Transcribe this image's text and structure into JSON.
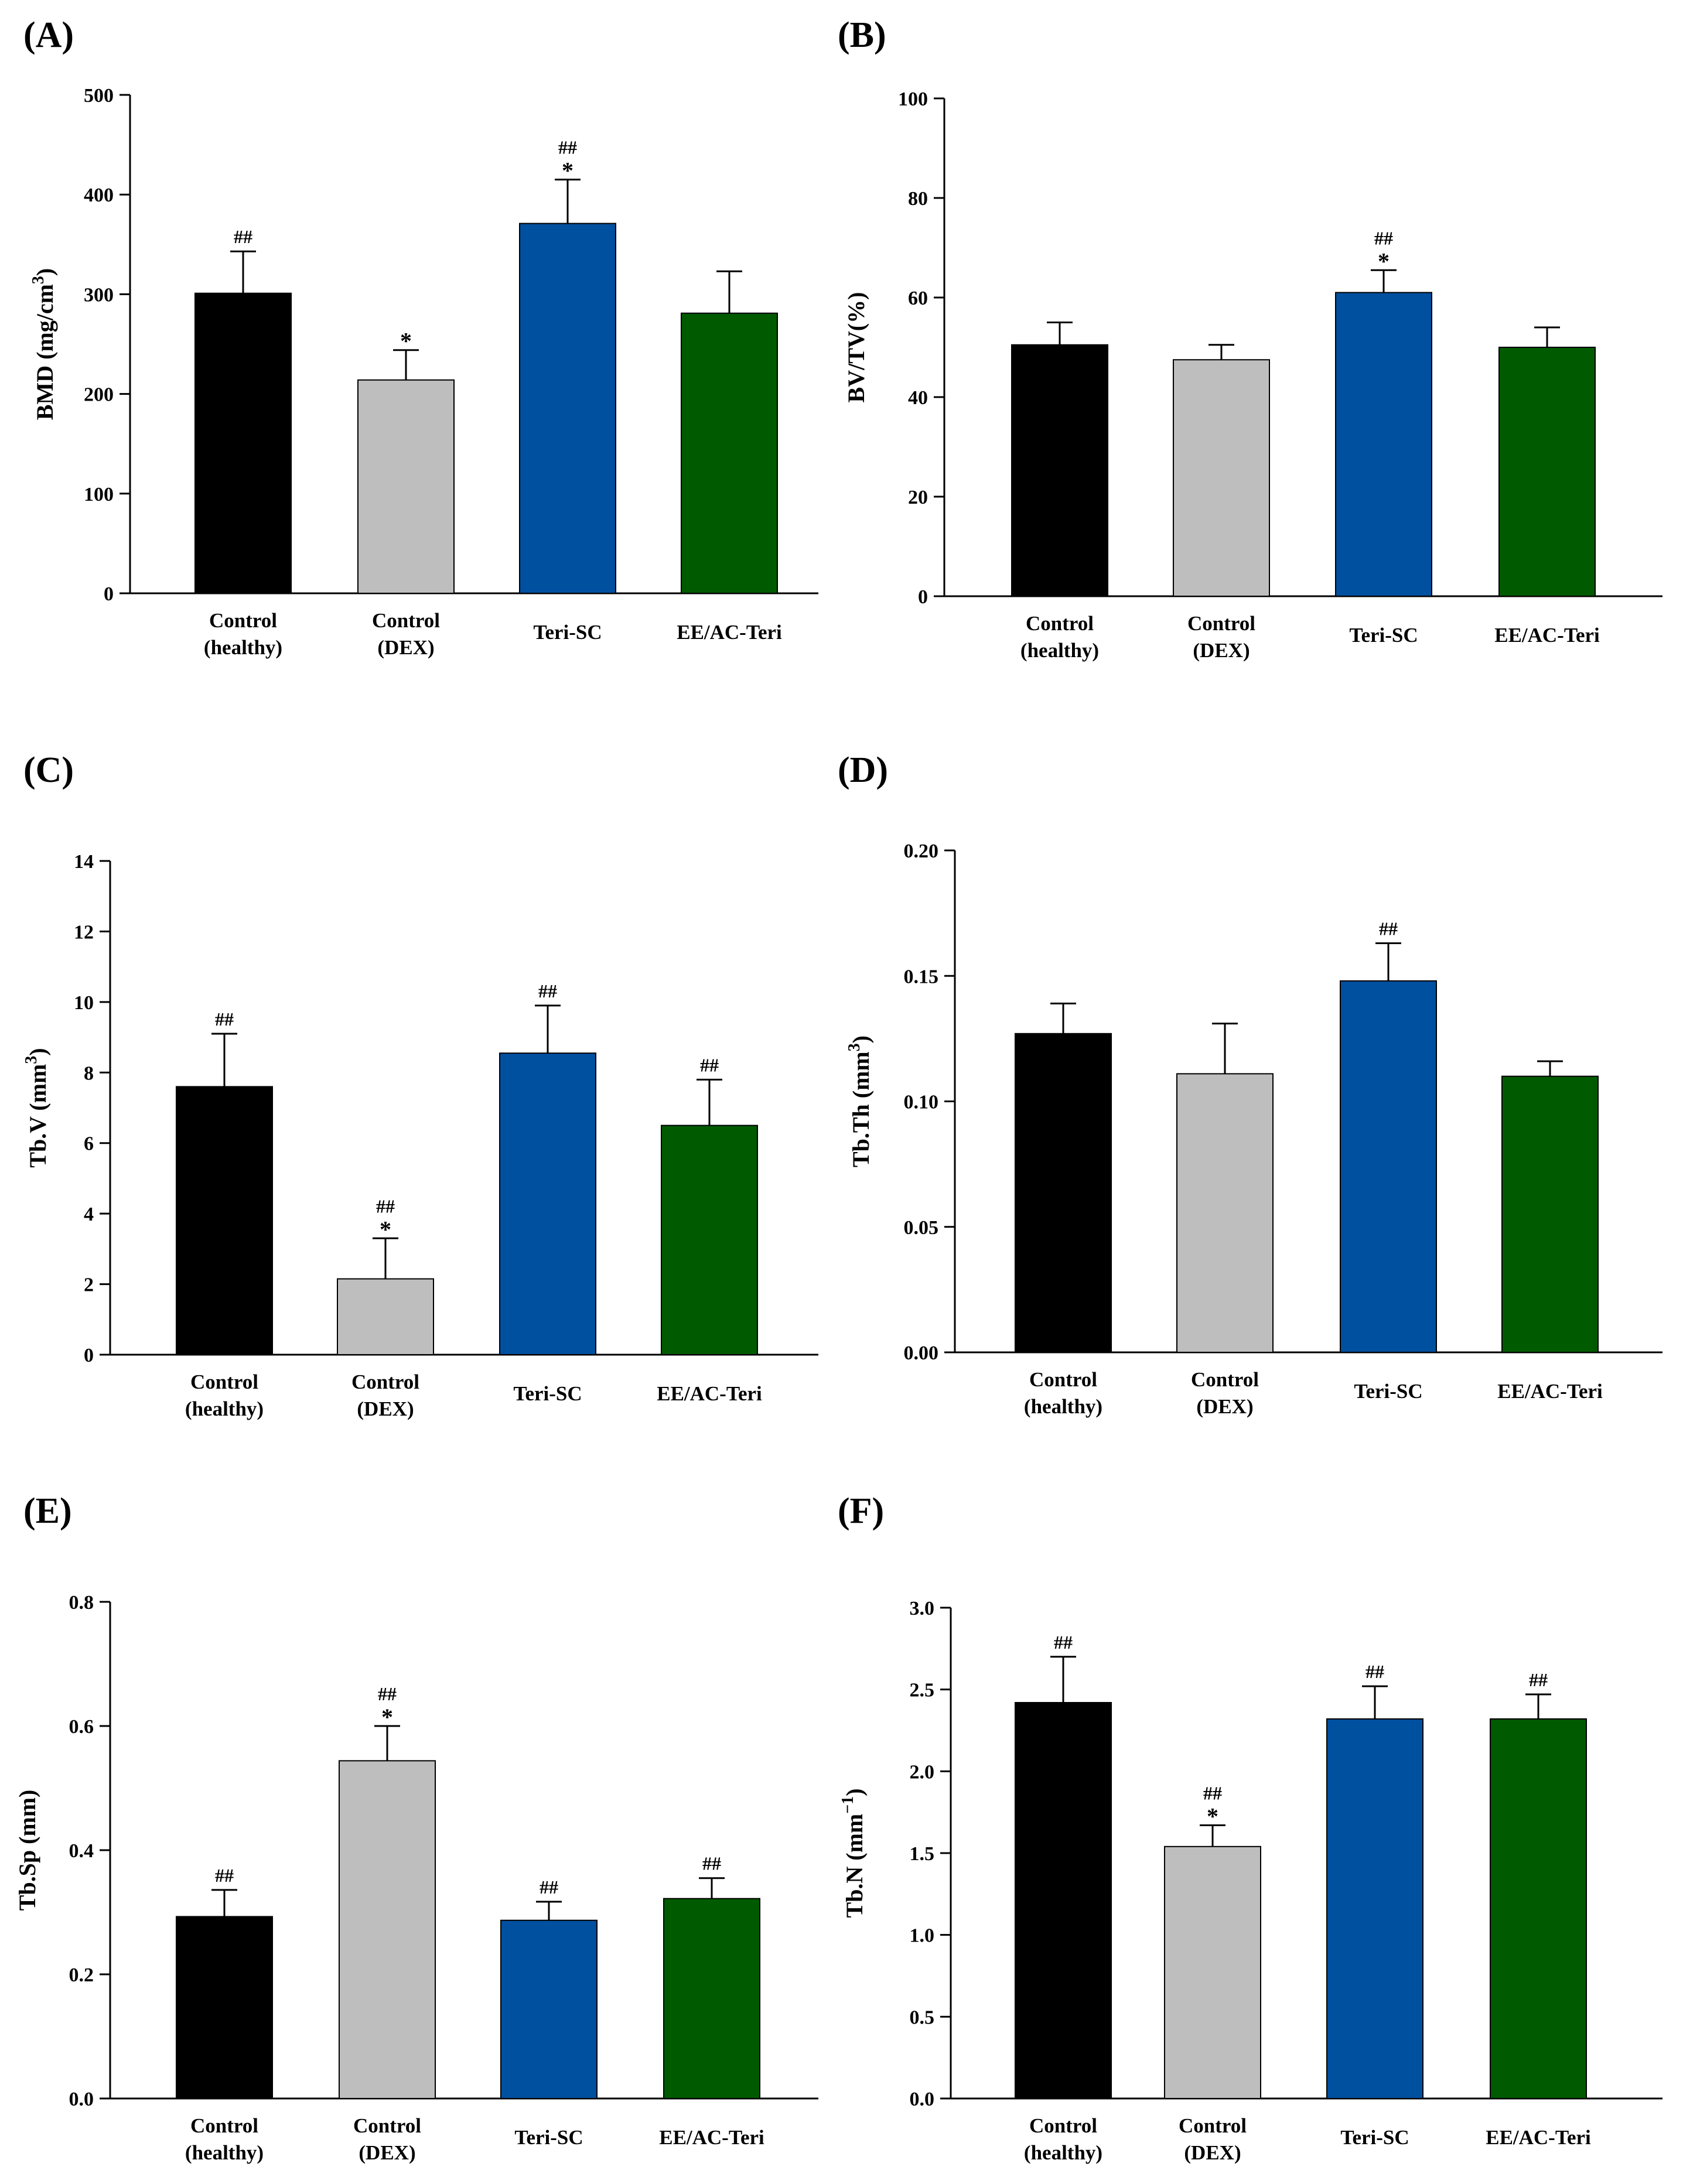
{
  "figure": {
    "categories": [
      [
        "Control",
        "(healthy)"
      ],
      [
        "Control",
        "(DEX)"
      ],
      [
        "Teri-SC"
      ],
      [
        "EE/AC-Teri"
      ]
    ],
    "colors": [
      "#000000",
      "#bebebe",
      "#0050a0",
      "#005a00"
    ]
  },
  "chart_data": [
    {
      "panel": "(A)",
      "type": "bar",
      "ylabel": "BMD (mg/cm",
      "ylabel_sup": "3",
      "ylabel_end": ")",
      "ylim": [
        0,
        500
      ],
      "yticks": [
        "0",
        "100",
        "200",
        "300",
        "400",
        "500"
      ],
      "ytick_values": [
        0,
        100,
        200,
        300,
        400,
        500
      ],
      "values": [
        301,
        214,
        371,
        281
      ],
      "errors": [
        42,
        30,
        44,
        42
      ],
      "annotations": [
        [
          "##"
        ],
        [
          "*"
        ],
        [
          "##",
          "*"
        ],
        []
      ]
    },
    {
      "panel": "(B)",
      "type": "bar",
      "ylabel": "BV/TV(%)",
      "ylabel_sup": "",
      "ylabel_end": "",
      "ylim": [
        0,
        100
      ],
      "yticks": [
        "0",
        "20",
        "40",
        "60",
        "80",
        "100"
      ],
      "ytick_values": [
        0,
        20,
        40,
        60,
        80,
        100
      ],
      "values": [
        50.5,
        47.5,
        61,
        50
      ],
      "errors": [
        4.5,
        3.0,
        4.5,
        4.0
      ],
      "annotations": [
        [],
        [],
        [
          "##",
          "*"
        ],
        []
      ]
    },
    {
      "panel": "(C)",
      "type": "bar",
      "ylabel": "Tb.V (mm",
      "ylabel_sup": "3",
      "ylabel_end": ")",
      "ylim": [
        0,
        14
      ],
      "yticks": [
        "0",
        "2",
        "4",
        "6",
        "8",
        "10",
        "12",
        "14"
      ],
      "ytick_values": [
        0,
        2,
        4,
        6,
        8,
        10,
        12,
        14
      ],
      "values": [
        7.6,
        2.15,
        8.55,
        6.5
      ],
      "errors": [
        1.5,
        1.15,
        1.35,
        1.3
      ],
      "annotations": [
        [
          "##"
        ],
        [
          "##",
          "*"
        ],
        [
          "##"
        ],
        [
          "##"
        ]
      ]
    },
    {
      "panel": "(D)",
      "type": "bar",
      "ylabel": "Tb.Th (mm",
      "ylabel_sup": "3",
      "ylabel_end": ")",
      "ylim": [
        0,
        0.2
      ],
      "yticks": [
        "0.00",
        "0.05",
        "0.10",
        "0.15",
        "0.20"
      ],
      "ytick_values": [
        0,
        0.05,
        0.1,
        0.15,
        0.2
      ],
      "values": [
        0.127,
        0.111,
        0.148,
        0.11
      ],
      "errors": [
        0.012,
        0.02,
        0.015,
        0.006
      ],
      "annotations": [
        [],
        [],
        [
          "##"
        ],
        []
      ]
    },
    {
      "panel": "(E)",
      "type": "bar",
      "ylabel": "Tb.Sp (mm)",
      "ylabel_sup": "",
      "ylabel_end": "",
      "ylim": [
        0,
        0.8
      ],
      "yticks": [
        "0.0",
        "0.2",
        "0.4",
        "0.6",
        "0.8"
      ],
      "ytick_values": [
        0,
        0.2,
        0.4,
        0.6,
        0.8
      ],
      "values": [
        0.293,
        0.544,
        0.287,
        0.322
      ],
      "errors": [
        0.043,
        0.056,
        0.03,
        0.033
      ],
      "annotations": [
        [
          "##"
        ],
        [
          "##",
          "*"
        ],
        [
          "##"
        ],
        [
          "##"
        ]
      ]
    },
    {
      "panel": "(F)",
      "type": "bar",
      "ylabel": "Tb.N (mm",
      "ylabel_sup": "−1",
      "ylabel_end": ")",
      "ylim": [
        0,
        3.0
      ],
      "yticks": [
        "0.0",
        "0.5",
        "1.0",
        "1.5",
        "2.0",
        "2.5",
        "3.0"
      ],
      "ytick_values": [
        0,
        0.5,
        1.0,
        1.5,
        2.0,
        2.5,
        3.0
      ],
      "values": [
        2.42,
        1.54,
        2.32,
        2.32
      ],
      "errors": [
        0.28,
        0.13,
        0.2,
        0.15
      ],
      "annotations": [
        [
          "##"
        ],
        [
          "##",
          "*"
        ],
        [
          "##"
        ],
        [
          "##"
        ]
      ]
    }
  ]
}
